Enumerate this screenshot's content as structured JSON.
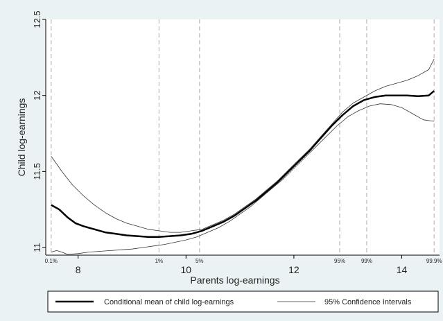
{
  "chart_data": {
    "type": "line",
    "title": "",
    "xlabel": "Parents log-earnings",
    "ylabel": "Child log-earnings",
    "xlim": [
      7.4,
      14.7
    ],
    "ylim": [
      10.95,
      12.5
    ],
    "x_ticks": [
      {
        "value": 8,
        "label": "8"
      },
      {
        "value": 10,
        "label": "10"
      },
      {
        "value": 12,
        "label": "12"
      },
      {
        "value": 14,
        "label": "14"
      }
    ],
    "y_ticks": [
      {
        "value": 11,
        "label": "11"
      },
      {
        "value": 11.5,
        "label": "11.5"
      },
      {
        "value": 12,
        "label": "12"
      },
      {
        "value": 12.5,
        "label": "12.5"
      }
    ],
    "percentile_lines": [
      {
        "value": 7.5,
        "label": "0.1%"
      },
      {
        "value": 9.5,
        "label": "1%"
      },
      {
        "value": 10.25,
        "label": "5%"
      },
      {
        "value": 12.85,
        "label": "95%"
      },
      {
        "value": 13.35,
        "label": "99%"
      },
      {
        "value": 14.6,
        "label": "99.9%"
      }
    ],
    "legend_position": "bottom",
    "series": [
      {
        "name": "Conditional mean of child log-earnings",
        "style": "thick",
        "x": [
          7.5,
          7.65,
          7.8,
          7.95,
          8.1,
          8.3,
          8.5,
          8.7,
          8.9,
          9.1,
          9.3,
          9.5,
          9.7,
          9.9,
          10.1,
          10.3,
          10.5,
          10.7,
          10.9,
          11.1,
          11.3,
          11.5,
          11.7,
          11.9,
          12.1,
          12.3,
          12.5,
          12.7,
          12.9,
          13.1,
          13.3,
          13.5,
          13.7,
          13.9,
          14.1,
          14.3,
          14.5,
          14.6
        ],
        "values": [
          11.28,
          11.25,
          11.2,
          11.16,
          11.14,
          11.12,
          11.1,
          11.09,
          11.08,
          11.075,
          11.07,
          11.07,
          11.075,
          11.08,
          11.09,
          11.11,
          11.14,
          11.17,
          11.21,
          11.26,
          11.31,
          11.37,
          11.43,
          11.5,
          11.57,
          11.64,
          11.72,
          11.8,
          11.87,
          11.93,
          11.97,
          11.99,
          12.0,
          12.0,
          12.0,
          11.995,
          12.0,
          12.03
        ]
      },
      {
        "name": "95% Confidence Intervals",
        "style": "thin",
        "x": [
          7.5,
          7.7,
          7.9,
          8.1,
          8.3,
          8.5,
          8.7,
          8.9,
          9.1,
          9.3,
          9.5,
          9.7,
          9.9,
          10.1,
          10.3,
          10.5,
          10.7,
          10.9,
          11.1,
          11.3,
          11.5,
          11.7,
          11.9,
          12.1,
          12.3,
          12.5,
          12.7,
          12.9,
          13.1,
          13.3,
          13.5,
          13.7,
          13.9,
          14.1,
          14.3,
          14.5,
          14.6
        ],
        "values": [
          11.6,
          11.5,
          11.41,
          11.34,
          11.28,
          11.23,
          11.19,
          11.16,
          11.14,
          11.12,
          11.11,
          11.1,
          11.1,
          11.11,
          11.12,
          11.15,
          11.18,
          11.22,
          11.27,
          11.32,
          11.38,
          11.44,
          11.51,
          11.58,
          11.65,
          11.73,
          11.81,
          11.89,
          11.95,
          11.99,
          12.03,
          12.06,
          12.08,
          12.1,
          12.13,
          12.17,
          12.24
        ]
      },
      {
        "name": "",
        "style": "thin",
        "x": [
          7.5,
          7.6,
          7.7,
          7.8,
          8.0,
          8.2,
          8.4,
          8.6,
          8.8,
          9.0,
          9.2,
          9.4,
          9.6,
          9.8,
          10.0,
          10.2,
          10.4,
          10.6,
          10.8,
          11.0,
          11.2,
          11.4,
          11.6,
          11.8,
          12.0,
          12.2,
          12.4,
          12.6,
          12.8,
          13.0,
          13.2,
          13.4,
          13.6,
          13.8,
          14.0,
          14.2,
          14.4,
          14.6
        ],
        "values": [
          10.97,
          10.98,
          10.97,
          10.955,
          10.96,
          10.97,
          10.975,
          10.98,
          10.985,
          10.99,
          11.0,
          11.01,
          11.02,
          11.035,
          11.05,
          11.07,
          11.1,
          11.13,
          11.17,
          11.22,
          11.27,
          11.33,
          11.39,
          11.45,
          11.52,
          11.59,
          11.66,
          11.73,
          11.8,
          11.86,
          11.9,
          11.93,
          11.945,
          11.94,
          11.92,
          11.88,
          11.84,
          11.83
        ]
      }
    ]
  }
}
